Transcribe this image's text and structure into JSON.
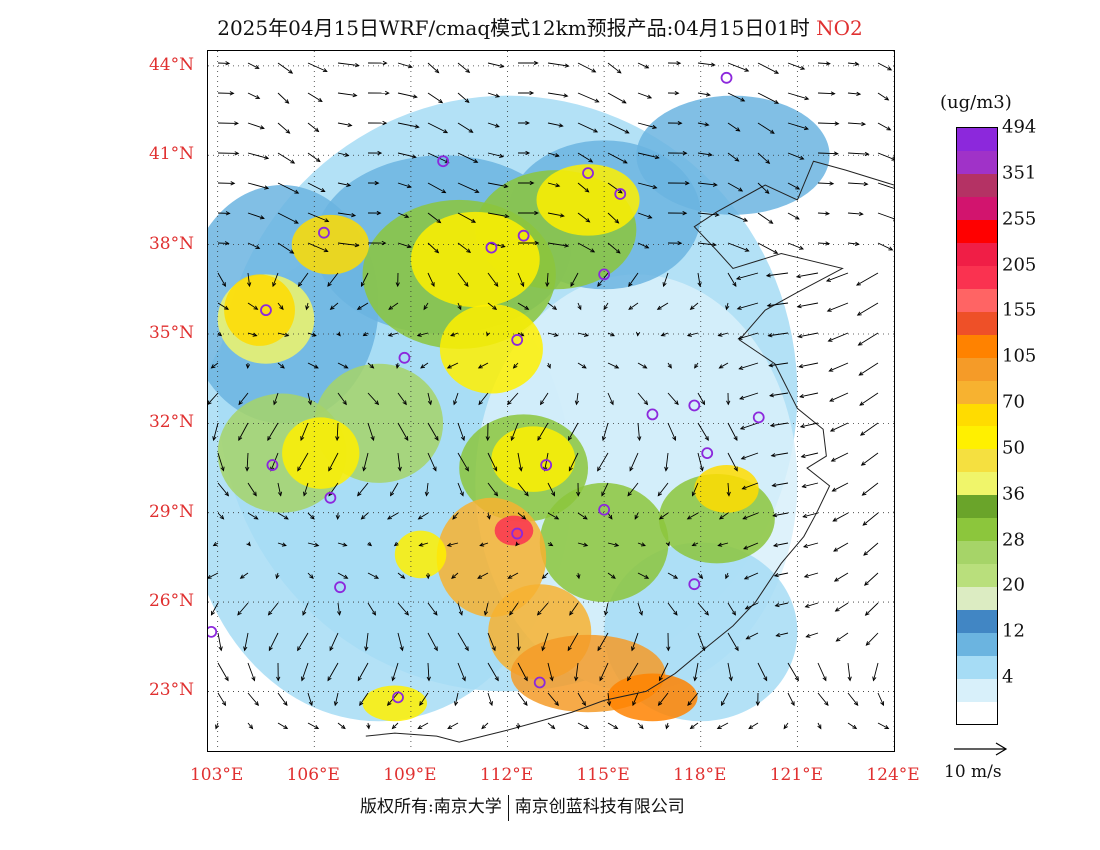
{
  "title": {
    "main": "2025年04月15日WRF/cmaq模式12km预报产品:04月15日01时",
    "variable": "NO2"
  },
  "axes": {
    "lat_labels": [
      "44°N",
      "41°N",
      "38°N",
      "35°N",
      "32°N",
      "29°N",
      "26°N",
      "23°N"
    ],
    "lat_values": [
      44,
      41,
      38,
      35,
      32,
      29,
      26,
      23
    ],
    "lon_labels": [
      "103°E",
      "106°E",
      "109°E",
      "112°E",
      "115°E",
      "118°E",
      "121°E",
      "124°E"
    ],
    "lon_values": [
      103,
      106,
      109,
      112,
      115,
      118,
      121,
      124
    ],
    "lat_range": [
      21,
      44.5
    ],
    "lon_range": [
      102.7,
      124
    ]
  },
  "legend": {
    "unit": "(ug/m3)",
    "colors": [
      "#ffffff",
      "#d8f0fa",
      "#a6dcf5",
      "#6bb4e0",
      "#4186c4",
      "#dcecc2",
      "#b9df7c",
      "#a6d468",
      "#8cc63c",
      "#6aa42a",
      "#f0f56a",
      "#f5e040",
      "#fff000",
      "#ffdc00",
      "#f7b230",
      "#f59b28",
      "#ff8200",
      "#ee5028",
      "#ff6464",
      "#fa3250",
      "#f01e46",
      "#ff0000",
      "#d2146e",
      "#b43264",
      "#a032c8",
      "#8c28dc"
    ],
    "labels": [
      "4",
      "12",
      "20",
      "28",
      "36",
      "50",
      "70",
      "105",
      "155",
      "205",
      "255",
      "351",
      "494"
    ]
  },
  "cities": [
    [
      118.8,
      43.6
    ],
    [
      110.0,
      40.8
    ],
    [
      114.5,
      40.4
    ],
    [
      115.5,
      39.7
    ],
    [
      112.5,
      38.3
    ],
    [
      111.5,
      37.9
    ],
    [
      106.3,
      38.4
    ],
    [
      104.5,
      35.8
    ],
    [
      115.0,
      37.0
    ],
    [
      112.3,
      34.8
    ],
    [
      108.8,
      34.2
    ],
    [
      116.5,
      32.3
    ],
    [
      117.8,
      32.6
    ],
    [
      119.8,
      32.2
    ],
    [
      118.2,
      31.0
    ],
    [
      113.2,
      30.6
    ],
    [
      104.7,
      30.6
    ],
    [
      106.5,
      29.5
    ],
    [
      115.0,
      29.1
    ],
    [
      112.3,
      28.3
    ],
    [
      106.8,
      26.5
    ],
    [
      117.8,
      26.6
    ],
    [
      102.8,
      25.0
    ],
    [
      113.0,
      23.3
    ],
    [
      108.6,
      22.8
    ]
  ],
  "footer": {
    "copyright_left": "版权所有:南京大学",
    "copyright_right": "南京创蓝科技有限公司"
  },
  "wind_reference": {
    "label": "10 m/s",
    "speed": 10
  }
}
